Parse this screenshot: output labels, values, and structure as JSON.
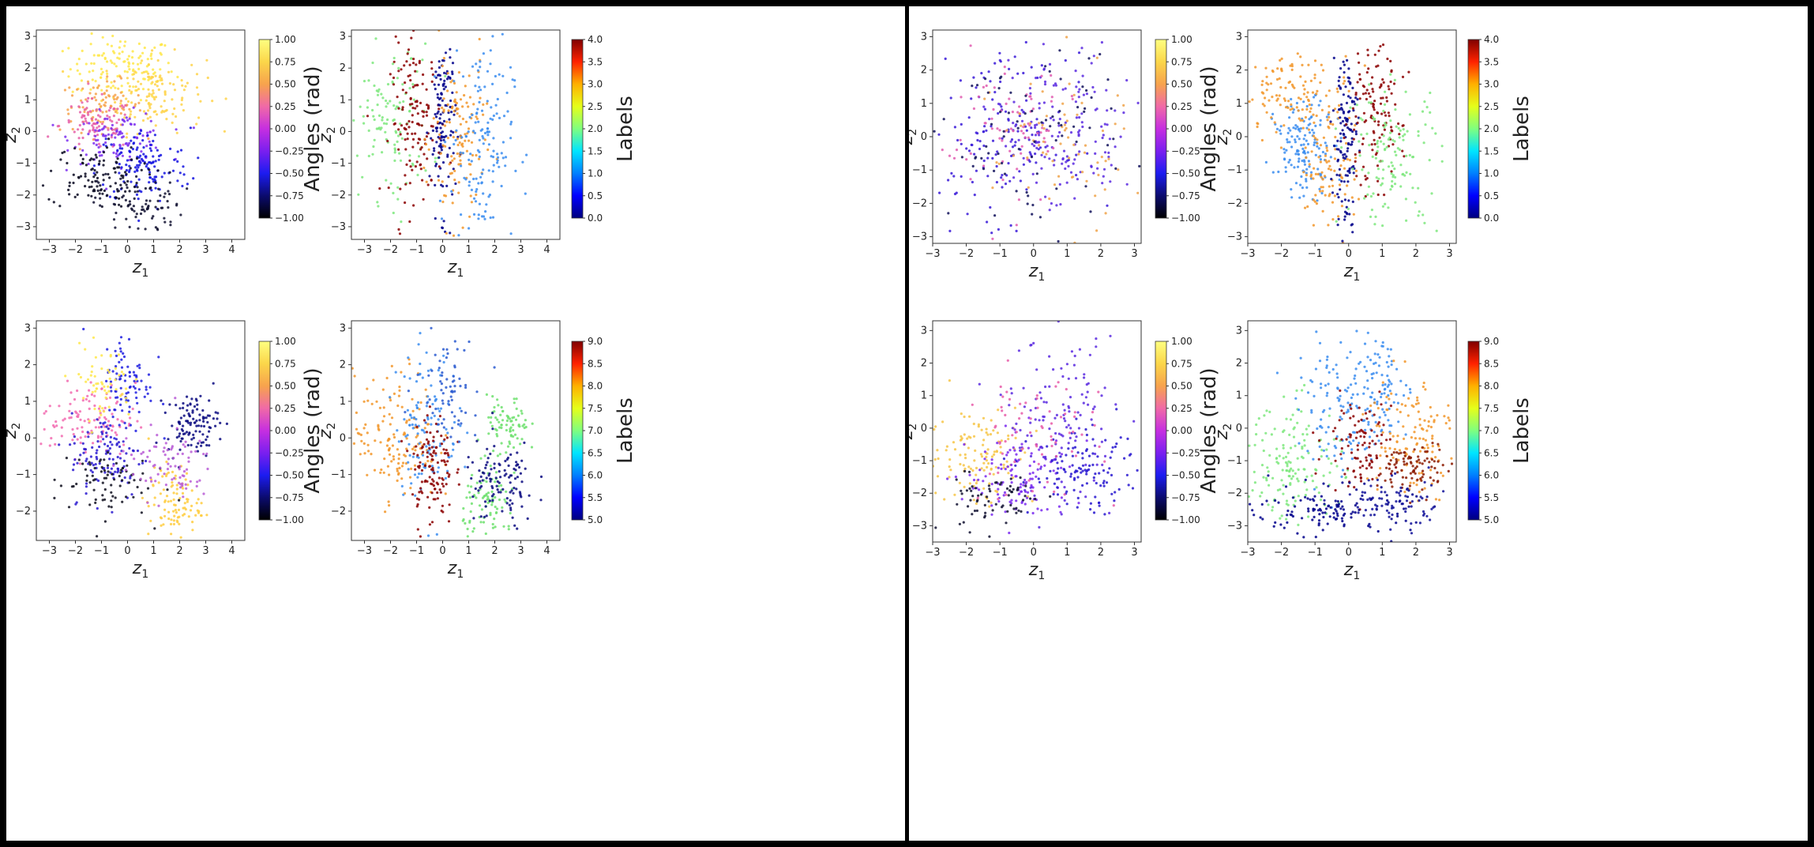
{
  "chart_data": [
    {
      "id": "L-TL",
      "type": "scatter",
      "xlabel": "z",
      "xlabel_sub": "1",
      "ylabel": "z",
      "ylabel_sub": "2",
      "xlim": [
        -3.5,
        4.5
      ],
      "ylim": [
        -3.4,
        3.2
      ],
      "xticks": [
        -3,
        -2,
        -1,
        0,
        1,
        2,
        3,
        4
      ],
      "yticks": [
        -3,
        -2,
        -1,
        0,
        1,
        2,
        3
      ],
      "colorbar": {
        "label": "Angles (rad)",
        "cmap": "angle",
        "min": -1.0,
        "max": 1.0,
        "ticks": [
          "-1.00",
          "-0.75",
          "-0.50",
          "-0.25",
          "0.00",
          "0.25",
          "0.50",
          "0.75",
          "1.00"
        ]
      },
      "clusters": [
        {
          "cx": -0.2,
          "cy": 2.0,
          "sx": 1.0,
          "sy": 0.5,
          "color": "#ffe84a",
          "n": 130
        },
        {
          "cx": 1.0,
          "cy": 1.2,
          "sx": 1.0,
          "sy": 0.6,
          "color": "#ffd34a",
          "n": 130
        },
        {
          "cx": -1.0,
          "cy": 0.8,
          "sx": 0.8,
          "sy": 0.4,
          "color": "#f7a24c",
          "n": 90
        },
        {
          "cx": -1.2,
          "cy": 0.2,
          "sx": 0.7,
          "sy": 0.4,
          "color": "#e65fa8",
          "n": 90
        },
        {
          "cx": -0.3,
          "cy": -0.2,
          "sx": 0.9,
          "sy": 0.4,
          "color": "#7b2ff0",
          "n": 110
        },
        {
          "cx": 0.6,
          "cy": -1.1,
          "sx": 0.9,
          "sy": 0.6,
          "color": "#1414e0",
          "n": 130
        },
        {
          "cx": -1.3,
          "cy": -1.4,
          "sx": 0.9,
          "sy": 0.5,
          "color": "#080820",
          "n": 110
        },
        {
          "cx": 0.5,
          "cy": -2.3,
          "sx": 0.8,
          "sy": 0.5,
          "color": "#101030",
          "n": 90
        }
      ]
    },
    {
      "id": "L-TR",
      "type": "scatter",
      "xlabel": "z",
      "xlabel_sub": "1",
      "ylabel": "z",
      "ylabel_sub": "2",
      "xlim": [
        -3.5,
        4.5
      ],
      "ylim": [
        -3.4,
        3.2
      ],
      "xticks": [
        -3,
        -2,
        -1,
        0,
        1,
        2,
        3,
        4
      ],
      "yticks": [
        -3,
        -2,
        -1,
        0,
        1,
        2,
        3
      ],
      "colorbar": {
        "label": "Labels",
        "cmap": "jet",
        "min": 0.0,
        "max": 4.0,
        "ticks": [
          "0.0",
          "0.5",
          "1.0",
          "1.5",
          "2.0",
          "2.5",
          "3.0",
          "3.5",
          "4.0"
        ]
      },
      "clusters": [
        {
          "cx": -2.0,
          "cy": 0.3,
          "sx": 0.8,
          "sy": 1.2,
          "color": "#7ee87e",
          "n": 120
        },
        {
          "cx": -1.0,
          "cy": 0.3,
          "sx": 0.5,
          "sy": 1.2,
          "color": "#8b0000",
          "n": 140
        },
        {
          "cx": 0.0,
          "cy": 0.3,
          "sx": 0.25,
          "sy": 1.4,
          "color": "#00008b",
          "n": 130
        },
        {
          "cx": 0.6,
          "cy": -0.3,
          "sx": 0.5,
          "sy": 1.4,
          "color": "#f2962a",
          "n": 130
        },
        {
          "cx": 1.5,
          "cy": -0.3,
          "sx": 0.6,
          "sy": 1.6,
          "color": "#3b8df0",
          "n": 150
        }
      ]
    },
    {
      "id": "L-BL",
      "type": "scatter",
      "xlabel": "z",
      "xlabel_sub": "1",
      "ylabel": "z",
      "ylabel_sub": "2",
      "xlim": [
        -3.5,
        4.5
      ],
      "ylim": [
        -2.8,
        3.2
      ],
      "xticks": [
        -3,
        -2,
        -1,
        0,
        1,
        2,
        3,
        4
      ],
      "yticks": [
        -2,
        -1,
        0,
        1,
        2,
        3
      ],
      "colorbar": {
        "label": "Angles (rad)",
        "cmap": "angle",
        "min": -1.0,
        "max": 1.0,
        "ticks": [
          "-1.00",
          "-0.75",
          "-0.50",
          "-0.25",
          "0.00",
          "0.25",
          "0.50",
          "0.75",
          "1.00"
        ]
      },
      "clusters": [
        {
          "cx": -1.5,
          "cy": 0.5,
          "sx": 0.9,
          "sy": 0.5,
          "color": "#f26bb0",
          "n": 120
        },
        {
          "cx": -0.8,
          "cy": -0.5,
          "sx": 0.7,
          "sy": 0.6,
          "color": "#2a1ad0",
          "n": 110
        },
        {
          "cx": 0.0,
          "cy": 1.5,
          "sx": 0.5,
          "sy": 0.7,
          "color": "#2020e0",
          "n": 90
        },
        {
          "cx": -1.0,
          "cy": 1.5,
          "sx": 0.6,
          "sy": 0.5,
          "color": "#ffe84a",
          "n": 60
        },
        {
          "cx": 2.5,
          "cy": 0.4,
          "sx": 0.5,
          "sy": 0.4,
          "color": "#0a0a80",
          "n": 110
        },
        {
          "cx": 1.8,
          "cy": -1.8,
          "sx": 0.5,
          "sy": 0.5,
          "color": "#ffcc40",
          "n": 100
        },
        {
          "cx": -1.0,
          "cy": -1.2,
          "sx": 0.9,
          "sy": 0.5,
          "color": "#101020",
          "n": 80
        },
        {
          "cx": 1.5,
          "cy": -0.7,
          "sx": 0.9,
          "sy": 0.5,
          "color": "#b85cd6",
          "n": 80
        }
      ]
    },
    {
      "id": "L-BR",
      "type": "scatter",
      "xlabel": "z",
      "xlabel_sub": "1",
      "ylabel": "z",
      "ylabel_sub": "2",
      "xlim": [
        -3.5,
        4.5
      ],
      "ylim": [
        -2.8,
        3.2
      ],
      "xticks": [
        -3,
        -2,
        -1,
        0,
        1,
        2,
        3,
        4
      ],
      "yticks": [
        -2,
        -1,
        0,
        1,
        2,
        3
      ],
      "colorbar": {
        "label": "Labels",
        "cmap": "jet",
        "min": 5.0,
        "max": 9.0,
        "ticks": [
          "5.0",
          "5.5",
          "6.0",
          "6.5",
          "7.0",
          "7.5",
          "8.0",
          "8.5",
          "9.0"
        ]
      },
      "clusters": [
        {
          "cx": -1.8,
          "cy": 0.0,
          "sx": 0.8,
          "sy": 0.9,
          "color": "#f2962a",
          "n": 140
        },
        {
          "cx": -0.6,
          "cy": 0.4,
          "sx": 0.6,
          "sy": 1.0,
          "color": "#3b8df0",
          "n": 120
        },
        {
          "cx": -0.4,
          "cy": -0.8,
          "sx": 0.4,
          "sy": 0.8,
          "color": "#8b0000",
          "n": 120
        },
        {
          "cx": 2.5,
          "cy": 0.3,
          "sx": 0.4,
          "sy": 0.4,
          "color": "#6fe06f",
          "n": 80
        },
        {
          "cx": 1.8,
          "cy": -1.8,
          "sx": 0.5,
          "sy": 0.5,
          "color": "#6fe06f",
          "n": 90
        },
        {
          "cx": 2.2,
          "cy": -1.3,
          "sx": 0.7,
          "sy": 0.6,
          "color": "#0a0a80",
          "n": 110
        },
        {
          "cx": 0.2,
          "cy": 1.5,
          "sx": 0.6,
          "sy": 0.7,
          "color": "#2a5ad0",
          "n": 70
        }
      ]
    },
    {
      "id": "R-TL",
      "type": "scatter",
      "xlabel": "z",
      "xlabel_sub": "1",
      "ylabel": "z",
      "ylabel_sub": "2",
      "xlim": [
        -3.0,
        3.2
      ],
      "ylim": [
        -3.2,
        3.2
      ],
      "xticks": [
        -3,
        -2,
        -1,
        0,
        1,
        2,
        3
      ],
      "yticks": [
        -3,
        -2,
        -1,
        0,
        1,
        2,
        3
      ],
      "colorbar": {
        "label": "Angles (rad)",
        "cmap": "angle",
        "min": -1.0,
        "max": 1.0,
        "ticks": [
          "-1.00",
          "-0.75",
          "-0.50",
          "-0.25",
          "0.00",
          "0.25",
          "0.50",
          "0.75",
          "1.00"
        ]
      },
      "clusters": [
        {
          "cx": -1.0,
          "cy": 0.0,
          "sx": 1.0,
          "sy": 1.2,
          "color": "#3a1ad8",
          "n": 150
        },
        {
          "cx": 1.0,
          "cy": 0.0,
          "sx": 1.0,
          "sy": 1.2,
          "color": "#5a2ae0",
          "n": 150
        },
        {
          "cx": -0.8,
          "cy": 0.3,
          "sx": 1.0,
          "sy": 1.2,
          "color": "#e05cb0",
          "n": 80
        },
        {
          "cx": 0.8,
          "cy": -0.3,
          "sx": 1.0,
          "sy": 1.2,
          "color": "#f0a34a",
          "n": 70
        },
        {
          "cx": 0.0,
          "cy": 0.0,
          "sx": 1.3,
          "sy": 1.3,
          "color": "#10105a",
          "n": 80
        }
      ]
    },
    {
      "id": "R-TR",
      "type": "scatter",
      "xlabel": "z",
      "xlabel_sub": "1",
      "ylabel": "z",
      "ylabel_sub": "2",
      "xlim": [
        -3.0,
        3.2
      ],
      "ylim": [
        -3.2,
        3.2
      ],
      "xticks": [
        -3,
        -2,
        -1,
        0,
        1,
        2,
        3
      ],
      "yticks": [
        -3,
        -2,
        -1,
        0,
        1,
        2,
        3
      ],
      "colorbar": {
        "label": "Labels",
        "cmap": "jet",
        "min": 0.0,
        "max": 4.0,
        "ticks": [
          "0.0",
          "0.5",
          "1.0",
          "1.5",
          "2.0",
          "2.5",
          "3.0",
          "3.5",
          "4.0"
        ]
      },
      "clusters": [
        {
          "cx": -1.3,
          "cy": -0.3,
          "sx": 0.45,
          "sy": 0.7,
          "color": "#3b8df0",
          "n": 150
        },
        {
          "cx": -1.5,
          "cy": 1.3,
          "sx": 0.8,
          "sy": 0.6,
          "color": "#f2962a",
          "n": 120
        },
        {
          "cx": -0.6,
          "cy": -1.0,
          "sx": 0.4,
          "sy": 1.0,
          "color": "#f2962a",
          "n": 90
        },
        {
          "cx": -0.1,
          "cy": 0.0,
          "sx": 0.18,
          "sy": 1.5,
          "color": "#00008b",
          "n": 130
        },
        {
          "cx": 0.7,
          "cy": 0.6,
          "sx": 0.45,
          "sy": 1.0,
          "color": "#8b0000",
          "n": 130
        },
        {
          "cx": 1.3,
          "cy": -0.6,
          "sx": 0.7,
          "sy": 1.1,
          "color": "#7ee87e",
          "n": 140
        }
      ]
    },
    {
      "id": "R-BL",
      "type": "scatter",
      "xlabel": "z",
      "xlabel_sub": "1",
      "ylabel": "z",
      "ylabel_sub": "2",
      "xlim": [
        -3.0,
        3.2
      ],
      "ylim": [
        -3.5,
        3.3
      ],
      "xticks": [
        -3,
        -2,
        -1,
        0,
        1,
        2,
        3
      ],
      "yticks": [
        -3,
        -2,
        -1,
        0,
        1,
        2,
        3
      ],
      "colorbar": {
        "label": "Angles (rad)",
        "cmap": "angle",
        "min": -1.0,
        "max": 1.0,
        "ticks": [
          "-1.00",
          "-0.75",
          "-0.50",
          "-0.25",
          "0.00",
          "0.25",
          "0.50",
          "0.75",
          "1.00"
        ]
      },
      "clusters": [
        {
          "cx": -1.6,
          "cy": -0.8,
          "sx": 0.8,
          "sy": 0.8,
          "color": "#f7c648",
          "n": 130
        },
        {
          "cx": -0.4,
          "cy": -1.6,
          "sx": 0.8,
          "sy": 0.7,
          "color": "#7a2af0",
          "n": 120
        },
        {
          "cx": 0.8,
          "cy": 0.3,
          "sx": 0.8,
          "sy": 1.2,
          "color": "#5a2ae0",
          "n": 130
        },
        {
          "cx": 1.5,
          "cy": -1.4,
          "sx": 0.8,
          "sy": 0.6,
          "color": "#2818d0",
          "n": 120
        },
        {
          "cx": -1.2,
          "cy": -2.2,
          "sx": 0.8,
          "sy": 0.5,
          "color": "#101030",
          "n": 70
        },
        {
          "cx": 0.0,
          "cy": -0.3,
          "sx": 1.0,
          "sy": 1.0,
          "color": "#e85ca8",
          "n": 70
        }
      ]
    },
    {
      "id": "R-BR",
      "type": "scatter",
      "xlabel": "z",
      "xlabel_sub": "1",
      "ylabel": "z",
      "ylabel_sub": "2",
      "xlim": [
        -3.0,
        3.2
      ],
      "ylim": [
        -3.5,
        3.3
      ],
      "xticks": [
        -3,
        -2,
        -1,
        0,
        1,
        2,
        3
      ],
      "yticks": [
        -3,
        -2,
        -1,
        0,
        1,
        2,
        3
      ],
      "colorbar": {
        "label": "Labels",
        "cmap": "jet",
        "min": 5.0,
        "max": 9.0,
        "ticks": [
          "5.0",
          "5.5",
          "6.0",
          "6.5",
          "7.0",
          "7.5",
          "8.0",
          "8.5",
          "9.0"
        ]
      },
      "clusters": [
        {
          "cx": -1.6,
          "cy": -1.0,
          "sx": 0.7,
          "sy": 0.9,
          "color": "#7ee87e",
          "n": 150
        },
        {
          "cx": -0.3,
          "cy": 0.5,
          "sx": 0.6,
          "sy": 1.0,
          "color": "#3b8df0",
          "n": 110
        },
        {
          "cx": 1.0,
          "cy": 1.2,
          "sx": 0.4,
          "sy": 0.9,
          "color": "#3b8df0",
          "n": 90
        },
        {
          "cx": 0.3,
          "cy": -0.5,
          "sx": 0.5,
          "sy": 0.7,
          "color": "#8b0000",
          "n": 100
        },
        {
          "cx": 1.8,
          "cy": -0.2,
          "sx": 0.7,
          "sy": 1.0,
          "color": "#f2962a",
          "n": 130
        },
        {
          "cx": 2.0,
          "cy": -1.2,
          "sx": 0.5,
          "sy": 0.4,
          "color": "#8b1a00",
          "n": 90
        },
        {
          "cx": -0.5,
          "cy": -2.5,
          "sx": 1.2,
          "sy": 0.35,
          "color": "#00008b",
          "n": 140
        },
        {
          "cx": 1.2,
          "cy": -2.3,
          "sx": 0.8,
          "sy": 0.4,
          "color": "#12129a",
          "n": 70
        }
      ]
    }
  ]
}
